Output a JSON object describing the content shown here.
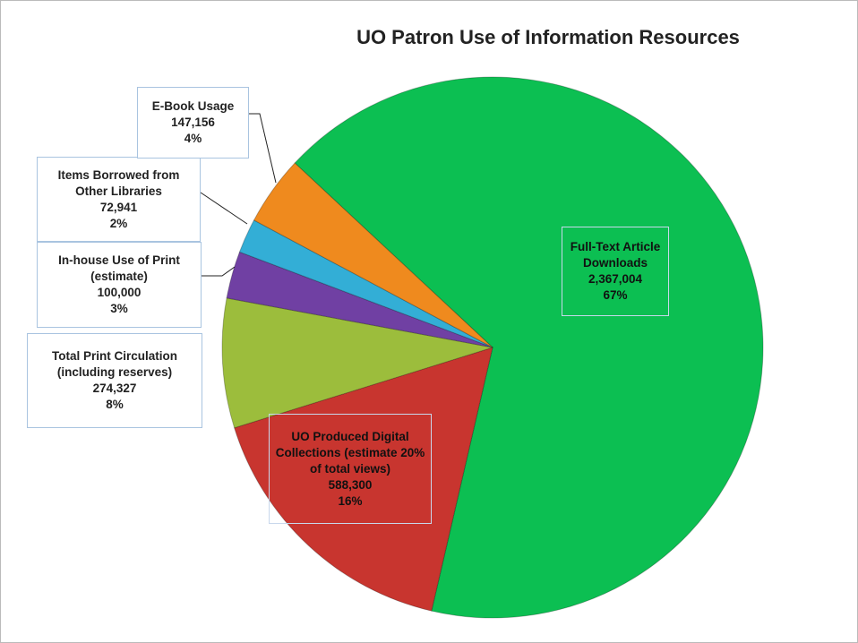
{
  "chart_data": {
    "type": "pie",
    "title": "UO Patron Use of Information Resources",
    "categories": [
      "Full-Text Article Downloads",
      "UO Produced Digital Collections (estimate 20% of total views)",
      "Total Print Circulation (including reserves)",
      "In-house Use of Print (estimate)",
      "Items Borrowed from Other Libraries",
      "E-Book Usage"
    ],
    "values": [
      2367004,
      588300,
      274327,
      100000,
      72941,
      147156
    ],
    "value_labels": [
      "2,367,004",
      "588,300",
      "274,327",
      "100,000",
      "72,941",
      "147,156"
    ],
    "percent_labels": [
      "67%",
      "16%",
      "8%",
      "3%",
      "2%",
      "4%"
    ],
    "colors": [
      "#0cbf52",
      "#c8352f",
      "#9cbd3c",
      "#7040a3",
      "#33aed6",
      "#ef8a1e"
    ]
  }
}
